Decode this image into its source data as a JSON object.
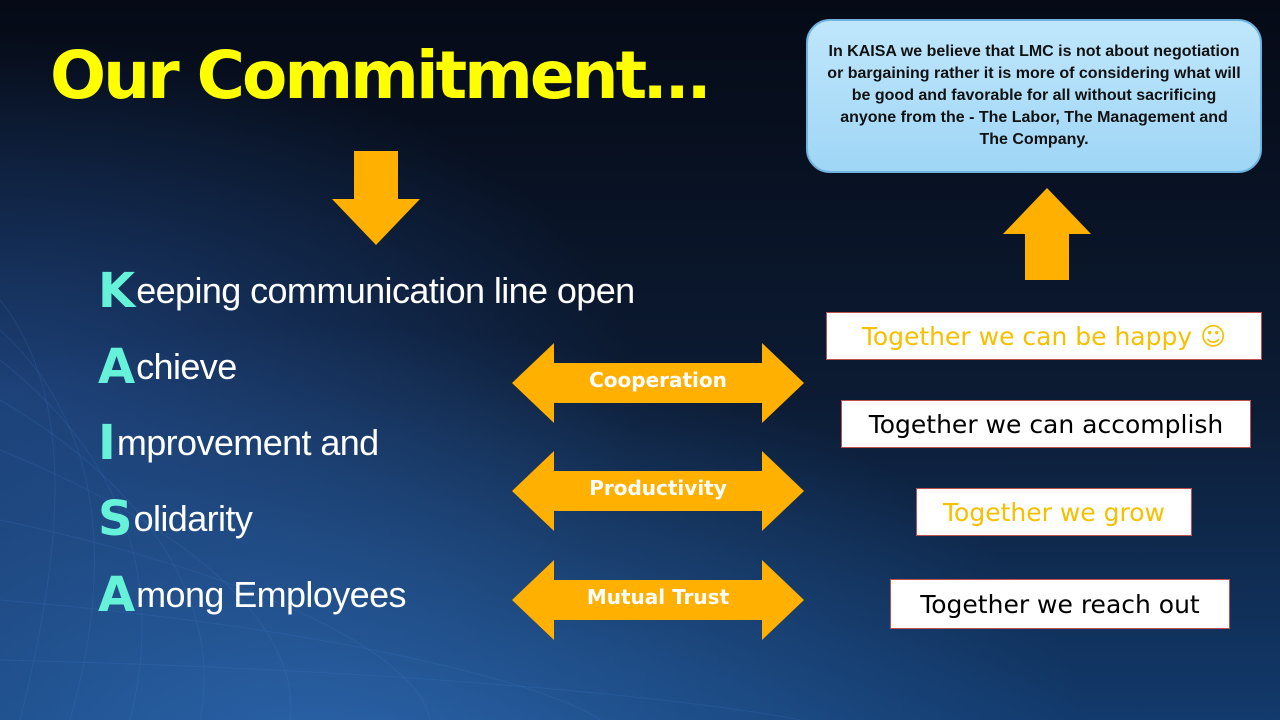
{
  "slide": {
    "title": "Our Commitment…",
    "callout": "In KAISA  we believe that LMC is not about negotiation or bargaining rather it is more of considering what will be good and favorable for all without sacrificing anyone from the - The Labor, The Management and The Company.",
    "kaisa": [
      {
        "letter": "K",
        "rest": "eeping communication line open"
      },
      {
        "letter": "A",
        "rest": "chieve"
      },
      {
        "letter": "I",
        "rest": "mprovement and"
      },
      {
        "letter": "S",
        "rest": "olidarity"
      },
      {
        "letter": "A",
        "rest": "mong Employees"
      }
    ],
    "arrows": [
      {
        "label": "Cooperation"
      },
      {
        "label": "Productivity"
      },
      {
        "label": "Mutual Trust"
      }
    ],
    "together": [
      {
        "text": "Together we can be happy ☺",
        "color": "#f5c000"
      },
      {
        "text": "Together we can accomplish",
        "color": "#000000"
      },
      {
        "text": "Together we grow",
        "color": "#f5c000"
      },
      {
        "text": "Together we reach out",
        "color": "#000000"
      }
    ]
  },
  "colors": {
    "background": "#0b1628",
    "title": "#ffff00",
    "accent_letters": "#66f2d8",
    "arrow": "#ffb000",
    "callout_fill": "#aedcf8"
  },
  "icons": {
    "down_arrow": "down-arrow-icon",
    "up_arrow": "up-arrow-icon",
    "double_arrow": "double-arrow-icon"
  }
}
